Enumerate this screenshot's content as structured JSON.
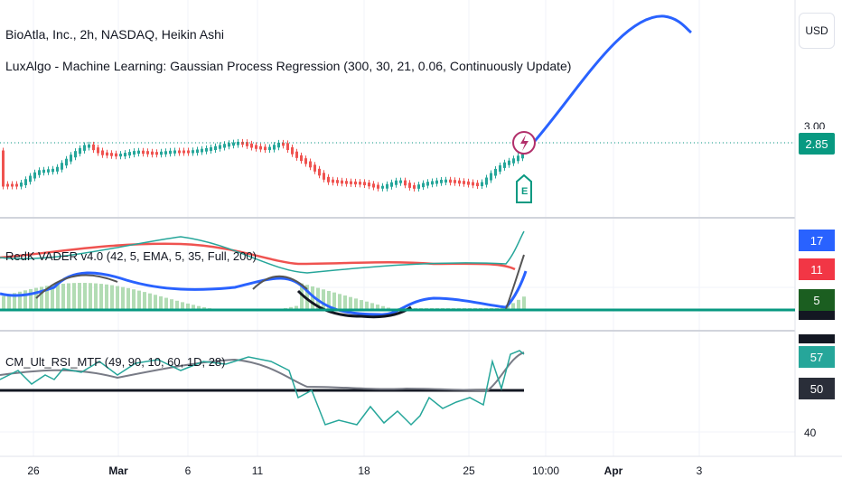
{
  "header": {
    "symbol_title": "BioAtla, Inc., 2h, NASDAQ, Heikin Ashi",
    "indicator_title": "LuxAlgo - Machine Learning: Gaussian Process Regression (300, 30, 21, 0.06, Continuously Update)"
  },
  "currency_button": "USD",
  "price_axis": {
    "partial_label": "3.00",
    "current_price": "2.85",
    "current_price_color": "#089981"
  },
  "earnings_badge": "E",
  "pane2": {
    "label": "RedK VADER v4.0 (42, 5, EMA, 5, 35, Full, 200)",
    "tags": [
      {
        "text": "17",
        "color": "#2962ff"
      },
      {
        "text": "11",
        "color": "#f23645"
      },
      {
        "text": "5",
        "color": "#1b5e20"
      }
    ]
  },
  "pane3": {
    "label": "CM_Ult_RSI_MTF (49, 90, 10, 60, 1D, 28)",
    "tags": [
      {
        "text": "57",
        "color": "#26a69a"
      },
      {
        "text": "50",
        "color": "#2a2e39"
      }
    ],
    "axis_label": "40"
  },
  "x_axis": [
    "26",
    "Mar",
    "6",
    "11",
    "18",
    "25",
    "10:00",
    "Apr",
    "3"
  ],
  "colors": {
    "up": "#26a69a",
    "down": "#ef5350",
    "gpr": "#2962ff",
    "grid": "#f0f3fa",
    "separator": "#e0e3eb"
  },
  "icons": {
    "flash": "lightning-icon",
    "earnings": "earnings-flag-icon"
  }
}
